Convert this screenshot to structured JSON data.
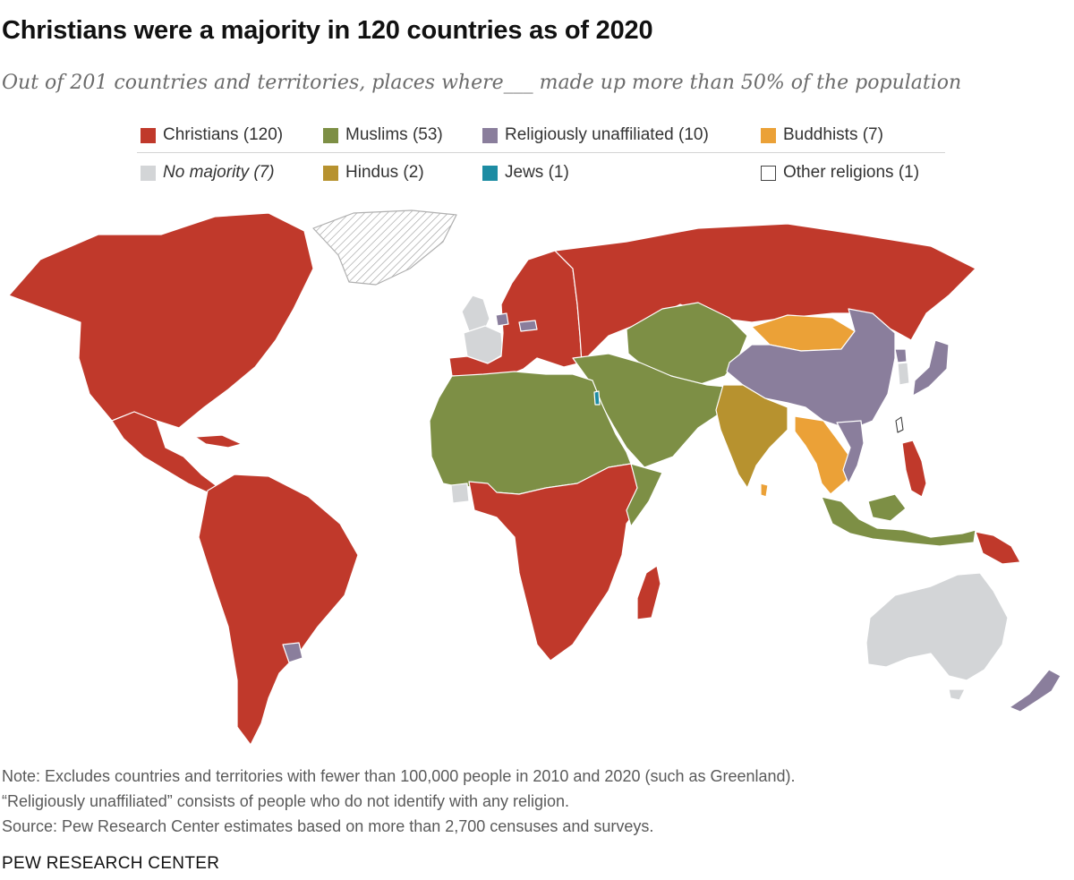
{
  "title": "Christians were a majority in 120 countries as of 2020",
  "subtitle": "Out of 201 countries and territories, places where___ made up more than 50% of the population",
  "legend": [
    {
      "key": "christians",
      "label": "Christians (120)",
      "color": "#c0392b"
    },
    {
      "key": "muslims",
      "label": "Muslims (53)",
      "color": "#7d8f45"
    },
    {
      "key": "unaffiliated",
      "label": "Religiously unaffiliated (10)",
      "color": "#8a7e9c"
    },
    {
      "key": "buddhists",
      "label": "Buddhists (7)",
      "color": "#eba137"
    },
    {
      "key": "no_majority",
      "label": "No majority (7)",
      "color": "#d3d5d7"
    },
    {
      "key": "hindus",
      "label": "Hindus (2)",
      "color": "#b7922f"
    },
    {
      "key": "jews",
      "label": "Jews (1)",
      "color": "#1d8ca3"
    },
    {
      "key": "other",
      "label": "Other religions (1)",
      "color": "#ffffff"
    }
  ],
  "map": {
    "excluded_pattern": "hatched",
    "excluded_color": "#ffffff",
    "border_color": "#ffffff",
    "regions": [
      {
        "name": "North America",
        "category": "christians"
      },
      {
        "name": "Greenland",
        "category": "excluded"
      },
      {
        "name": "Central America and Caribbean",
        "category": "christians"
      },
      {
        "name": "South America",
        "category": "christians"
      },
      {
        "name": "Uruguay",
        "category": "unaffiliated"
      },
      {
        "name": "United Kingdom",
        "category": "no_majority"
      },
      {
        "name": "France",
        "category": "no_majority"
      },
      {
        "name": "Netherlands",
        "category": "unaffiliated"
      },
      {
        "name": "Czech Republic",
        "category": "unaffiliated"
      },
      {
        "name": "Europe",
        "category": "christians"
      },
      {
        "name": "Russia",
        "category": "christians"
      },
      {
        "name": "Central Asia",
        "category": "muslims"
      },
      {
        "name": "Middle East",
        "category": "muslims"
      },
      {
        "name": "Israel",
        "category": "jews"
      },
      {
        "name": "North Africa and Sahel",
        "category": "muslims"
      },
      {
        "name": "Côte d'Ivoire",
        "category": "no_majority"
      },
      {
        "name": "Sub-Saharan Africa",
        "category": "christians"
      },
      {
        "name": "Somalia",
        "category": "muslims"
      },
      {
        "name": "Madagascar",
        "category": "christians"
      },
      {
        "name": "Mongolia",
        "category": "buddhists"
      },
      {
        "name": "China",
        "category": "unaffiliated"
      },
      {
        "name": "North Korea",
        "category": "unaffiliated"
      },
      {
        "name": "South Korea",
        "category": "no_majority"
      },
      {
        "name": "Japan",
        "category": "unaffiliated"
      },
      {
        "name": "Taiwan",
        "category": "other"
      },
      {
        "name": "India",
        "category": "hindus"
      },
      {
        "name": "Nepal",
        "category": "hindus"
      },
      {
        "name": "Sri Lanka",
        "category": "buddhists"
      },
      {
        "name": "Mainland Southeast Asia",
        "category": "buddhists"
      },
      {
        "name": "Vietnam",
        "category": "unaffiliated"
      },
      {
        "name": "Indonesia and Malaysia",
        "category": "muslims"
      },
      {
        "name": "Philippines",
        "category": "christians"
      },
      {
        "name": "Papua New Guinea",
        "category": "christians"
      },
      {
        "name": "Australia",
        "category": "no_majority"
      },
      {
        "name": "New Zealand",
        "category": "unaffiliated"
      }
    ]
  },
  "notes": [
    "Note: Excludes countries and territories with fewer than 100,000 people in 2010 and 2020 (such as Greenland).",
    "“Religiously unaffiliated” consists of people who do not identify with any religion.",
    "Source: Pew Research Center estimates based on more than 2,700 censuses and surveys."
  ],
  "footer": {
    "brand": "PEW RESEARCH CENTER"
  }
}
